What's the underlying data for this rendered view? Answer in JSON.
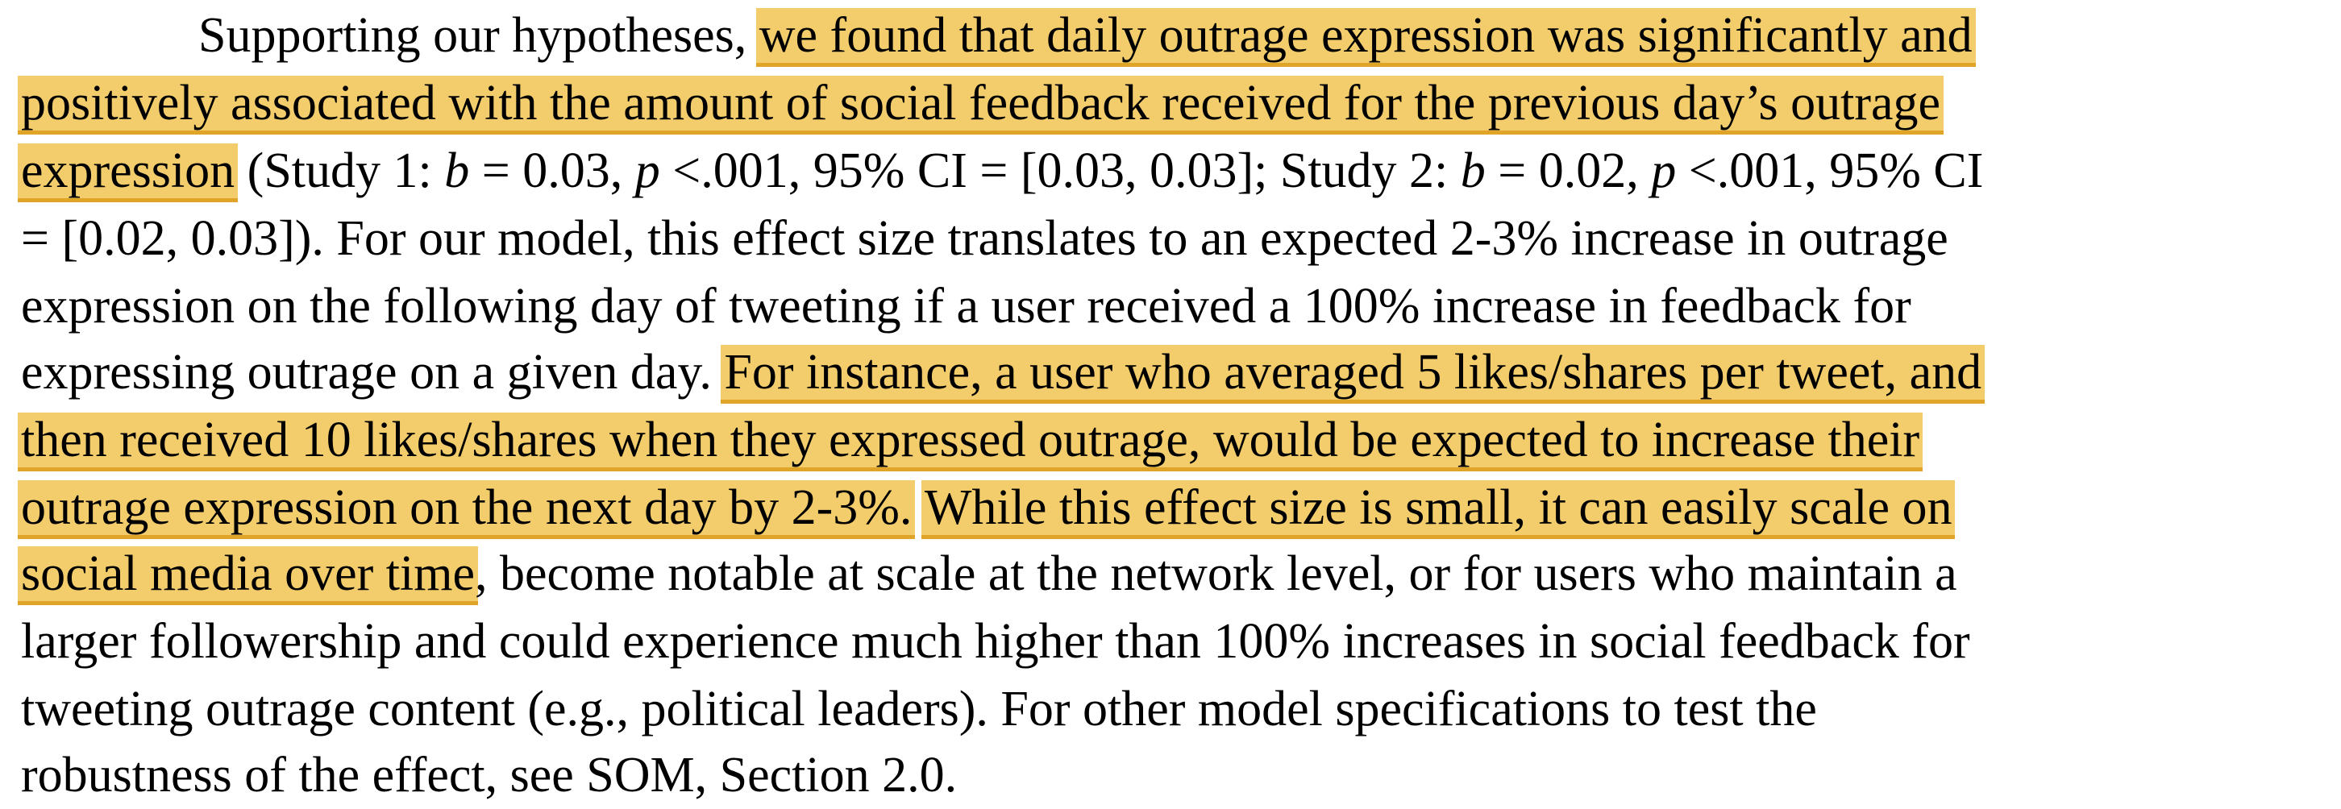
{
  "document": {
    "highlight_color": "#f3cd6c",
    "underline_color": "#e0a429",
    "lines": [
      [
        {
          "text": "Supporting our hypotheses, ",
          "hl": false,
          "it": false
        },
        {
          "text": "we found that daily outrage expression was significantly and",
          "hl": true,
          "it": false
        }
      ],
      [
        {
          "text": "positively associated with the amount of social feedback received for the previous day’s outrage",
          "hl": true,
          "it": false
        }
      ],
      [
        {
          "text": "expression",
          "hl": true,
          "it": false
        },
        {
          "text": " (Study 1: ",
          "hl": false,
          "it": false
        },
        {
          "text": "b",
          "hl": false,
          "it": true
        },
        {
          "text": " = 0.03, ",
          "hl": false,
          "it": false
        },
        {
          "text": "p",
          "hl": false,
          "it": true
        },
        {
          "text": " <.001, 95% CI = [0.03, 0.03]; Study 2: ",
          "hl": false,
          "it": false
        },
        {
          "text": "b",
          "hl": false,
          "it": true
        },
        {
          "text": " = 0.02, ",
          "hl": false,
          "it": false
        },
        {
          "text": "p",
          "hl": false,
          "it": true
        },
        {
          "text": " <.001, 95% CI",
          "hl": false,
          "it": false
        }
      ],
      [
        {
          "text": "= [0.02, 0.03]). For our model, this effect size translates to an expected 2-3% increase in outrage",
          "hl": false,
          "it": false
        }
      ],
      [
        {
          "text": "expression on the following day of tweeting if a user received a 100% increase in feedback for",
          "hl": false,
          "it": false
        }
      ],
      [
        {
          "text": "expressing outrage on a given day. ",
          "hl": false,
          "it": false
        },
        {
          "text": "For instance, a user who averaged 5 likes/shares per tweet, and",
          "hl": true,
          "it": false
        }
      ],
      [
        {
          "text": "then received 10 likes/shares when they expressed outrage, would be expected to increase their",
          "hl": true,
          "it": false
        }
      ],
      [
        {
          "text": "outrage expression on the next day by 2-3%.",
          "hl": true,
          "it": false
        },
        {
          "text": " ",
          "hl": false,
          "it": false
        },
        {
          "text": "While this effect size is small, it can easily scale on",
          "hl": true,
          "it": false
        }
      ],
      [
        {
          "text": "social media over time",
          "hl": true,
          "it": false
        },
        {
          "text": ", become notable at scale at the network level, or for users who maintain a",
          "hl": false,
          "it": false
        }
      ],
      [
        {
          "text": "larger followership and could experience much higher than 100% increases in social feedback for",
          "hl": false,
          "it": false
        }
      ],
      [
        {
          "text": "tweeting outrage content (e.g., political leaders). For other model specifications to test the",
          "hl": false,
          "it": false
        }
      ],
      [
        {
          "text": "robustness of the effect, see SOM, Section 2.0.",
          "hl": false,
          "it": false
        }
      ]
    ]
  }
}
